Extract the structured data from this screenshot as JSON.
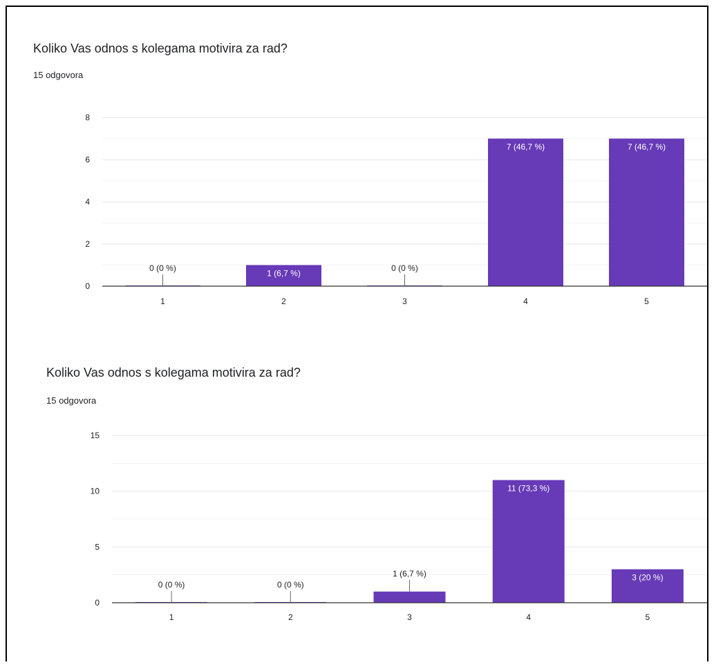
{
  "charts": [
    {
      "title": "Koliko Vas odnos s kolegama motivira za rad?",
      "responses": "15 odgovora"
    },
    {
      "title": "Koliko Vas odnos s kolegama motivira za rad?",
      "responses": "15 odgovora"
    }
  ],
  "chart_data": [
    {
      "type": "bar",
      "title": "Koliko Vas odnos s kolegama motivira za rad?",
      "subtitle": "15 odgovora",
      "categories": [
        "1",
        "2",
        "3",
        "4",
        "5"
      ],
      "values": [
        0,
        1,
        0,
        7,
        7
      ],
      "data_labels": [
        "0 (0 %)",
        "1 (6,7 %)",
        "0 (0 %)",
        "7 (46,7 %)",
        "7 (46,7 %)"
      ],
      "yticks": [
        0,
        2,
        4,
        6,
        8
      ],
      "ylim": [
        0,
        8
      ],
      "grid": true,
      "bar_color": "#673ab7"
    },
    {
      "type": "bar",
      "title": "Koliko Vas odnos s kolegama motivira za rad?",
      "subtitle": "15 odgovora",
      "categories": [
        "1",
        "2",
        "3",
        "4",
        "5"
      ],
      "values": [
        0,
        0,
        1,
        11,
        3
      ],
      "data_labels": [
        "0 (0 %)",
        "0 (0 %)",
        "1 (6,7 %)",
        "11 (73,3 %)",
        "3 (20 %)"
      ],
      "yticks": [
        0,
        5,
        10,
        15
      ],
      "ylim": [
        0,
        15
      ],
      "grid": true,
      "bar_color": "#673ab7"
    }
  ]
}
